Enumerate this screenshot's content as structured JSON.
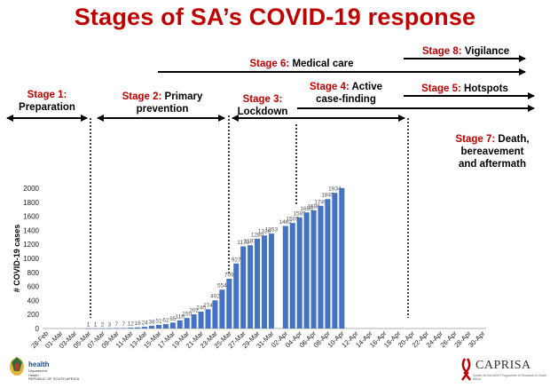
{
  "title": "Stages of SA’s COVID-19 response",
  "stages": [
    {
      "id": "s1",
      "label": "Stage 1:",
      "text": "Preparation"
    },
    {
      "id": "s2",
      "label": "Stage 2:",
      "text1": " Primary",
      "text2": "prevention"
    },
    {
      "id": "s3",
      "label": "Stage 3:",
      "text": "Lockdown"
    },
    {
      "id": "s4",
      "label": "Stage 4:",
      "text1": " Active",
      "text2": "case-finding"
    },
    {
      "id": "s5",
      "label": "Stage 5:",
      "text": " Hotspots"
    },
    {
      "id": "s6",
      "label": "Stage 6:",
      "text": " Medical care"
    },
    {
      "id": "s7",
      "label": "Stage 7:",
      "text1": " Death,",
      "text2": "bereavement",
      "text3": "and aftermath"
    },
    {
      "id": "s8",
      "label": "Stage 8:",
      "text": " Vigilance"
    }
  ],
  "chart_data": {
    "type": "bar",
    "title": "",
    "xlabel": "",
    "ylabel": "# COVID-19 cases",
    "ylim": [
      0,
      2000
    ],
    "yticks": [
      0,
      200,
      400,
      600,
      800,
      1000,
      1200,
      1400,
      1600,
      1800,
      2000
    ],
    "bar_color": "#4472c4",
    "x_tick_labels": [
      "28-Feb",
      "01-Mar",
      "03-Mar",
      "05-Mar",
      "07-Mar",
      "09-Mar",
      "11-Mar",
      "13-Mar",
      "15-Mar",
      "17-Mar",
      "19-Mar",
      "21-Mar",
      "23-Mar",
      "25-Mar",
      "27-Mar",
      "29-Mar",
      "31-Mar",
      "02-Apr",
      "04-Apr",
      "06-Apr",
      "08-Apr",
      "10-Apr",
      "12-Apr",
      "14-Apr",
      "16-Apr",
      "18-Apr",
      "20-Apr",
      "22-Apr",
      "24-Apr",
      "26-Apr",
      "28-Apr",
      "30-Apr"
    ],
    "series": [
      {
        "name": "# COVID-19 cases",
        "points": [
          {
            "date": "05-Mar",
            "value": 1
          },
          {
            "date": "06-Mar",
            "value": 1
          },
          {
            "date": "07-Mar",
            "value": 2
          },
          {
            "date": "08-Mar",
            "value": 3
          },
          {
            "date": "09-Mar",
            "value": 7
          },
          {
            "date": "10-Mar",
            "value": 7
          },
          {
            "date": "11-Mar",
            "value": 12
          },
          {
            "date": "12-Mar",
            "value": 16
          },
          {
            "date": "13-Mar",
            "value": 24
          },
          {
            "date": "14-Mar",
            "value": 38
          },
          {
            "date": "15-Mar",
            "value": 51
          },
          {
            "date": "16-Mar",
            "value": 62
          },
          {
            "date": "17-Mar",
            "value": 85
          },
          {
            "date": "18-Mar",
            "value": 116
          },
          {
            "date": "19-Mar",
            "value": 150
          },
          {
            "date": "20-Mar",
            "value": 202
          },
          {
            "date": "21-Mar",
            "value": 240
          },
          {
            "date": "22-Mar",
            "value": 274
          },
          {
            "date": "23-Mar",
            "value": 402
          },
          {
            "date": "24-Mar",
            "value": 554
          },
          {
            "date": "25-Mar",
            "value": 709
          },
          {
            "date": "26-Mar",
            "value": 927
          },
          {
            "date": "27-Mar",
            "value": 1170
          },
          {
            "date": "28-Mar",
            "value": 1187
          },
          {
            "date": "29-Mar",
            "value": 1280
          },
          {
            "date": "30-Mar",
            "value": 1326
          },
          {
            "date": "31-Mar",
            "value": 1353
          },
          {
            "date": "01-Apr",
            "value": 1380
          },
          {
            "date": "02-Apr",
            "value": 1462
          },
          {
            "date": "03-Apr",
            "value": 1505
          },
          {
            "date": "04-Apr",
            "value": 1585
          },
          {
            "date": "05-Apr",
            "value": 1655
          },
          {
            "date": "06-Apr",
            "value": 1686
          },
          {
            "date": "07-Apr",
            "value": 1749
          },
          {
            "date": "08-Apr",
            "value": 1845
          },
          {
            "date": "09-Apr",
            "value": 1934
          },
          {
            "date": "10-Apr",
            "value": 2003
          }
        ],
        "point_labels": [
          "1",
          "1",
          "2",
          "3",
          "7",
          "7",
          "12",
          "16",
          "24",
          "38",
          "51",
          "62",
          "85",
          "116",
          "150",
          "202",
          "240",
          "274",
          "402",
          "554",
          "709",
          "927",
          "1170",
          "1187",
          "1280",
          "1326",
          "1353",
          "1380",
          "1462",
          "1505",
          "1585",
          "1655",
          "1686",
          "1749",
          "1845",
          "1934",
          ""
        ]
      }
    ]
  },
  "footer": {
    "dept_word": "health",
    "dept_line1": "Department:",
    "dept_line2": "Health",
    "dept_line3": "REPUBLIC OF SOUTH AFRICA",
    "caprisa": "CAPRISA",
    "caprisa_sub": "Centre for the AIDS Programme of Research in South Africa"
  },
  "colors": {
    "title": "#c00000",
    "stage_number": "#c00000",
    "bars": "#4472c4"
  }
}
